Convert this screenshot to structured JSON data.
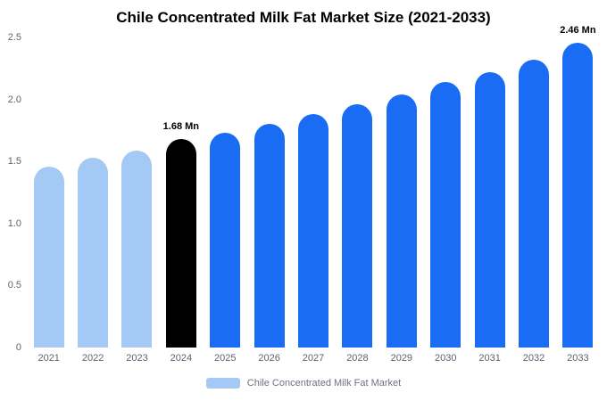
{
  "title": "Chile Concentrated Milk Fat Market Size (2021-2033)",
  "legend": {
    "label": "Chile Concentrated Milk Fat Market",
    "swatch_color": "#a4c9f4"
  },
  "y_axis": {
    "ticks": [
      "0",
      "0.5",
      "1.0",
      "1.5",
      "2.0",
      "2.5"
    ]
  },
  "colors": {
    "historical_bar": "#a4c9f4",
    "current_bar": "#000000",
    "forecast_bar": "#1a6cf4"
  },
  "chart_data": {
    "type": "bar",
    "title": "Chile Concentrated Milk Fat Market Size (2021-2033)",
    "categories": [
      "2021",
      "2022",
      "2023",
      "2024",
      "2025",
      "2026",
      "2027",
      "2028",
      "2029",
      "2030",
      "2031",
      "2032",
      "2033"
    ],
    "values": [
      1.46,
      1.53,
      1.59,
      1.68,
      1.73,
      1.8,
      1.88,
      1.96,
      2.04,
      2.14,
      2.22,
      2.32,
      2.46
    ],
    "bar_colors": [
      "#a4c9f4",
      "#a4c9f4",
      "#a4c9f4",
      "#000000",
      "#1a6cf4",
      "#1a6cf4",
      "#1a6cf4",
      "#1a6cf4",
      "#1a6cf4",
      "#1a6cf4",
      "#1a6cf4",
      "#1a6cf4",
      "#1a6cf4"
    ],
    "annotations": [
      {
        "index": 3,
        "text": "1.68 Mn"
      },
      {
        "index": 12,
        "text": "2.46 Mn"
      }
    ],
    "unit": "Mn",
    "xlabel": "",
    "ylabel": "",
    "ylim": [
      0,
      2.5
    ],
    "grid": false,
    "legend_position": "bottom"
  }
}
